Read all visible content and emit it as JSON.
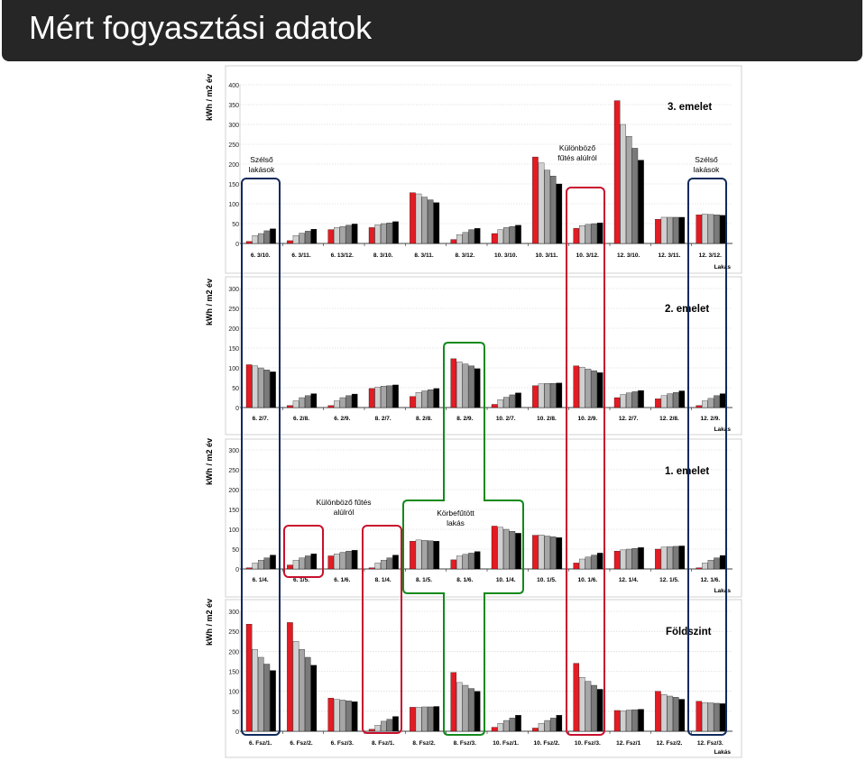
{
  "page_title": "Mért fogyasztási adatok",
  "colors": {
    "accent_red": "#e31b23",
    "box_navy": "#102a5c",
    "box_red": "#c8102e",
    "box_green": "#118a1b",
    "bar_shades": [
      "#e31b23",
      "#d0d0d0",
      "#a6a6a6",
      "#7a7a7a",
      "#000000"
    ]
  },
  "chart_data": [
    {
      "type": "bar",
      "title": "3. emelet",
      "ylabel": "kWh / m2 év",
      "xlabel": "Lakás",
      "ylim": [
        0,
        400
      ],
      "yticks": [
        0,
        50,
        100,
        150,
        200,
        250,
        300,
        350,
        400
      ],
      "grid": true,
      "categories": [
        "6. 3/10.",
        "6. 3/11.",
        "6. 13/12.",
        "8. 3/10.",
        "8. 3/11.",
        "8. 3/12.",
        "10. 3/10.",
        "10. 3/11.",
        "10. 3/12.",
        "12. 3/10.",
        "12. 3/11.",
        "12. 3/12."
      ],
      "values": [
        [
          5,
          20,
          25,
          32,
          37
        ],
        [
          7,
          20,
          26,
          31,
          36
        ],
        [
          35,
          40,
          43,
          46,
          49
        ],
        [
          40,
          47,
          50,
          52,
          55
        ],
        [
          128,
          125,
          117,
          110,
          103
        ],
        [
          10,
          22,
          28,
          35,
          38
        ],
        [
          25,
          35,
          40,
          43,
          46
        ],
        [
          218,
          203,
          185,
          170,
          150
        ],
        [
          38,
          45,
          48,
          50,
          52
        ],
        [
          360,
          300,
          270,
          240,
          210
        ],
        [
          61,
          66,
          66,
          66,
          66
        ],
        [
          72,
          74,
          73,
          72,
          71
        ]
      ],
      "annotations": [
        {
          "text": "Szélső lakások"
        },
        {
          "text": "Különböző fűtés alúlról"
        },
        {
          "text": "Szélső lakások"
        }
      ]
    },
    {
      "type": "bar",
      "title": "2. emelet",
      "ylabel": "kWh / m2 év",
      "xlabel": "Lakás",
      "ylim": [
        0,
        300
      ],
      "yticks": [
        0,
        50,
        100,
        150,
        200,
        250,
        300
      ],
      "grid": true,
      "categories": [
        "6. 2/7.",
        "6. 2/8.",
        "6. 2/9.",
        "8. 2/7.",
        "8. 2/8.",
        "8. 2/9.",
        "10. 2/7.",
        "10. 2/8.",
        "10. 2/9.",
        "12. 2/7.",
        "12. 2/8.",
        "12. 2/9."
      ],
      "values": [
        [
          108,
          105,
          100,
          95,
          90
        ],
        [
          5,
          17,
          25,
          30,
          35
        ],
        [
          5,
          17,
          25,
          30,
          34
        ],
        [
          48,
          52,
          54,
          55,
          57
        ],
        [
          28,
          38,
          42,
          45,
          48
        ],
        [
          123,
          115,
          110,
          105,
          98
        ],
        [
          8,
          20,
          26,
          32,
          37
        ],
        [
          55,
          60,
          61,
          61,
          62
        ],
        [
          105,
          102,
          97,
          93,
          88
        ],
        [
          25,
          33,
          37,
          40,
          43
        ],
        [
          22,
          30,
          35,
          38,
          42
        ],
        [
          5,
          17,
          23,
          30,
          35
        ]
      ]
    },
    {
      "type": "bar",
      "title": "1. emelet",
      "ylabel": "kWh / m2 év",
      "xlabel": "Lakás",
      "ylim": [
        0,
        300
      ],
      "yticks": [
        0,
        50,
        100,
        150,
        200,
        250,
        300
      ],
      "grid": true,
      "categories": [
        "6. 1/4.",
        "6. 1/5.",
        "6. 1/6.",
        "8. 1/4.",
        "8. 1/5.",
        "8. 1/6.",
        "10. 1/4.",
        "10. 1/5.",
        "10. 1/6.",
        "12. 1/4.",
        "12. 1/5.",
        "12. 1/6."
      ],
      "values": [
        [
          3,
          15,
          22,
          28,
          35
        ],
        [
          10,
          22,
          28,
          33,
          38
        ],
        [
          33,
          38,
          42,
          45,
          47
        ],
        [
          3,
          15,
          22,
          28,
          35
        ],
        [
          70,
          73,
          72,
          71,
          70
        ],
        [
          23,
          33,
          37,
          40,
          44
        ],
        [
          108,
          105,
          100,
          95,
          90
        ],
        [
          85,
          86,
          83,
          81,
          79
        ],
        [
          15,
          25,
          30,
          35,
          40
        ],
        [
          45,
          48,
          50,
          52,
          54
        ],
        [
          50,
          55,
          56,
          57,
          58
        ],
        [
          3,
          15,
          22,
          28,
          34
        ]
      ],
      "annotations": [
        {
          "text": "Különböző fűtés alúlról"
        },
        {
          "text": "Körbefűtött lakás"
        }
      ]
    },
    {
      "type": "bar",
      "title": "Földszint",
      "ylabel": "kWh / m2 év",
      "xlabel": "Lakás",
      "ylim": [
        0,
        300
      ],
      "yticks": [
        0,
        50,
        100,
        150,
        200,
        250,
        300
      ],
      "grid": true,
      "categories": [
        "6. Fsz/1.",
        "6. Fsz/2.",
        "6. Fsz/3.",
        "8. Fsz/1.",
        "8. Fsz/2.",
        "8. Fsz/3.",
        "10. Fsz/1.",
        "10. Fsz/2.",
        "10. Fsz/3.",
        "12. Fsz/1",
        "12. Fsz/2.",
        "12. Fsz/3."
      ],
      "values": [
        [
          268,
          205,
          185,
          168,
          152
        ],
        [
          272,
          225,
          205,
          185,
          165
        ],
        [
          83,
          80,
          78,
          76,
          74
        ],
        [
          5,
          15,
          25,
          30,
          37
        ],
        [
          60,
          60,
          61,
          61,
          62
        ],
        [
          147,
          122,
          115,
          107,
          100
        ],
        [
          10,
          20,
          27,
          33,
          40
        ],
        [
          8,
          20,
          27,
          33,
          40
        ],
        [
          170,
          135,
          125,
          115,
          105
        ],
        [
          52,
          51,
          53,
          54,
          55
        ],
        [
          100,
          92,
          88,
          85,
          80
        ],
        [
          75,
          72,
          71,
          70,
          69
        ]
      ]
    }
  ]
}
